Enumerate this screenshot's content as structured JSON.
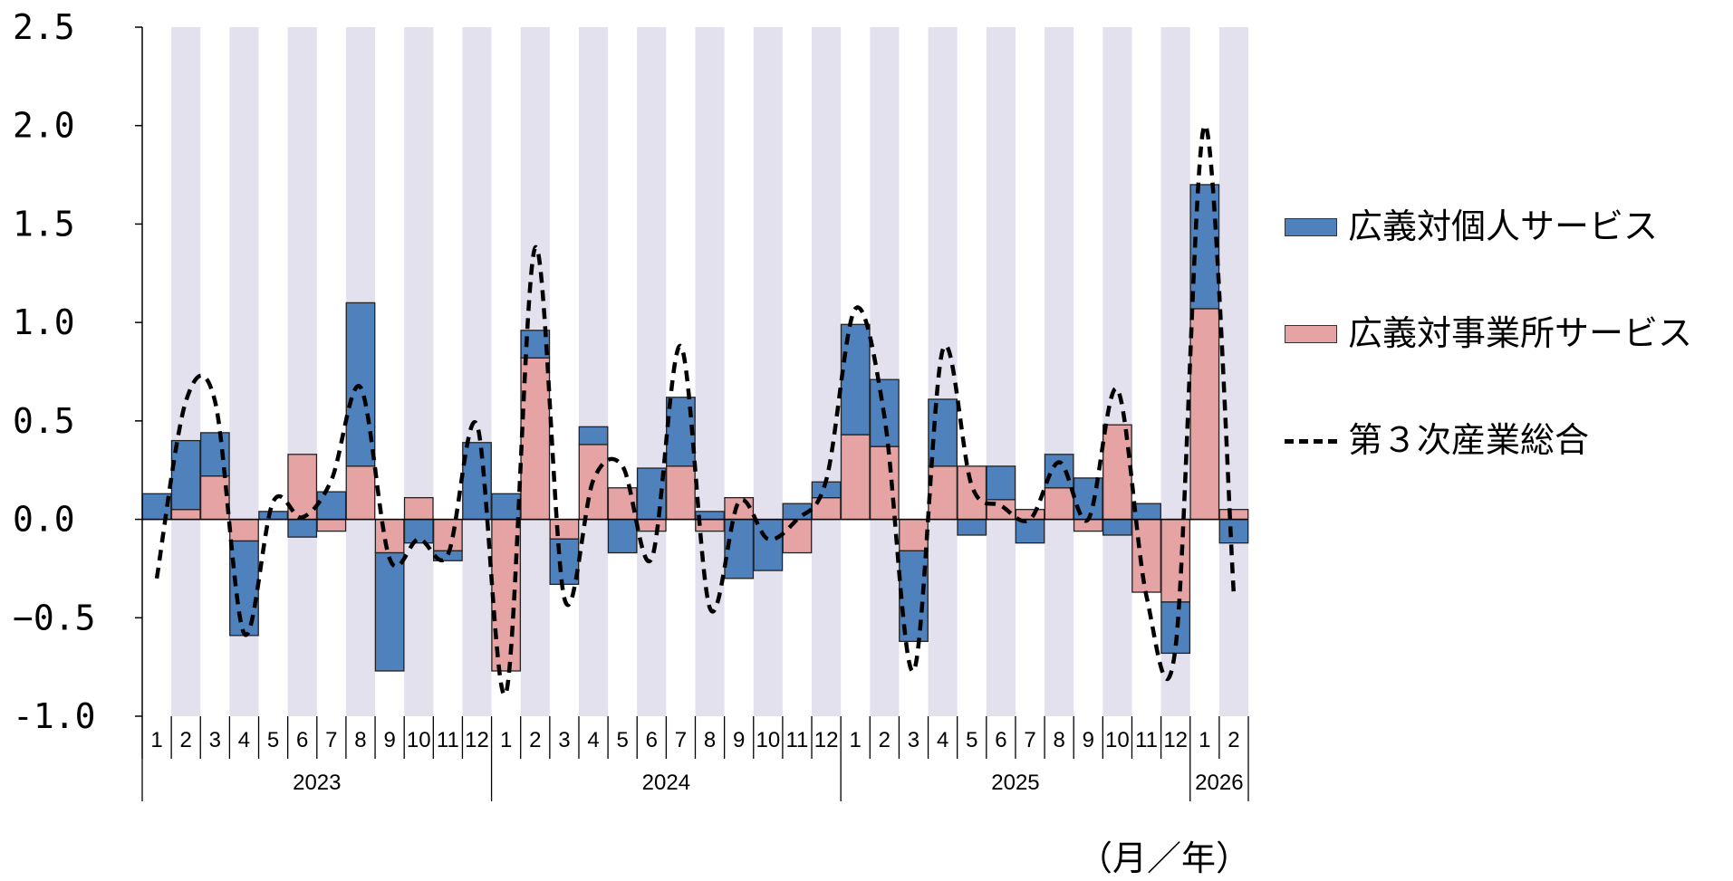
{
  "chart_data": {
    "type": "bar",
    "stacked": true,
    "title": "",
    "xlabel": "（月／年）",
    "ylabel": "",
    "ylim": [
      -1.0,
      2.5
    ],
    "yticks": [
      -1.0,
      -0.5,
      0.0,
      0.5,
      1.0,
      1.5,
      2.0,
      2.5
    ],
    "ytick_labels": [
      "-1.0",
      "−0.5",
      "0.0",
      "0.5",
      "1.0",
      "1.5",
      "2.0",
      "2.5"
    ],
    "categories": [
      "1",
      "2",
      "3",
      "4",
      "5",
      "6",
      "7",
      "8",
      "9",
      "10",
      "11",
      "12",
      "1",
      "2",
      "3",
      "4",
      "5",
      "6",
      "7",
      "8",
      "9",
      "10",
      "11",
      "12",
      "1",
      "2",
      "3",
      "4",
      "5",
      "6",
      "7",
      "8",
      "9",
      "10",
      "11",
      "12",
      "1",
      "2"
    ],
    "years": [
      {
        "label": "2023",
        "count": 12
      },
      {
        "label": "2024",
        "count": 12
      },
      {
        "label": "2025",
        "count": 12
      },
      {
        "label": "2026",
        "count": 2
      }
    ],
    "alternate_shading": true,
    "legend_position": "right",
    "series": [
      {
        "name": "広義対個人サービス",
        "kind": "bar",
        "color": "#4f81bd",
        "values": [
          0.13,
          0.35,
          0.22,
          -0.48,
          0.04,
          -0.09,
          0.14,
          0.83,
          -0.6,
          -0.12,
          -0.05,
          0.39,
          0.13,
          0.14,
          -0.23,
          0.09,
          -0.17,
          0.26,
          0.35,
          0.04,
          -0.3,
          -0.26,
          0.08,
          0.08,
          0.56,
          0.34,
          -0.46,
          0.34,
          -0.08,
          0.17,
          -0.12,
          0.17,
          0.21,
          -0.08,
          0.08,
          -0.26,
          0.63,
          -0.12
        ]
      },
      {
        "name": "広義対事業所サービス",
        "kind": "bar",
        "color": "#e6a3a3",
        "values": [
          0.0,
          0.05,
          0.22,
          -0.11,
          0.0,
          0.33,
          -0.06,
          0.27,
          -0.17,
          0.11,
          -0.16,
          0.0,
          -0.77,
          0.82,
          -0.1,
          0.38,
          0.16,
          -0.06,
          0.27,
          -0.06,
          0.11,
          0.0,
          -0.17,
          0.11,
          0.43,
          0.37,
          -0.16,
          0.27,
          0.27,
          0.1,
          0.05,
          0.16,
          -0.06,
          0.48,
          -0.37,
          -0.42,
          1.07,
          0.05
        ]
      },
      {
        "name": "第３次産業総合",
        "kind": "line",
        "style": "dashed",
        "color": "#000000",
        "values": [
          -0.3,
          0.6,
          0.6,
          -0.58,
          0.09,
          0.01,
          0.2,
          0.67,
          -0.2,
          -0.1,
          -0.18,
          0.48,
          -0.88,
          1.38,
          -0.4,
          0.2,
          0.27,
          -0.2,
          0.88,
          -0.45,
          0.09,
          -0.1,
          0.0,
          0.2,
          1.07,
          0.52,
          -0.77,
          0.86,
          0.17,
          0.07,
          0.0,
          0.29,
          0.0,
          0.66,
          -0.39,
          -0.65,
          2.0,
          -0.38
        ]
      }
    ]
  }
}
